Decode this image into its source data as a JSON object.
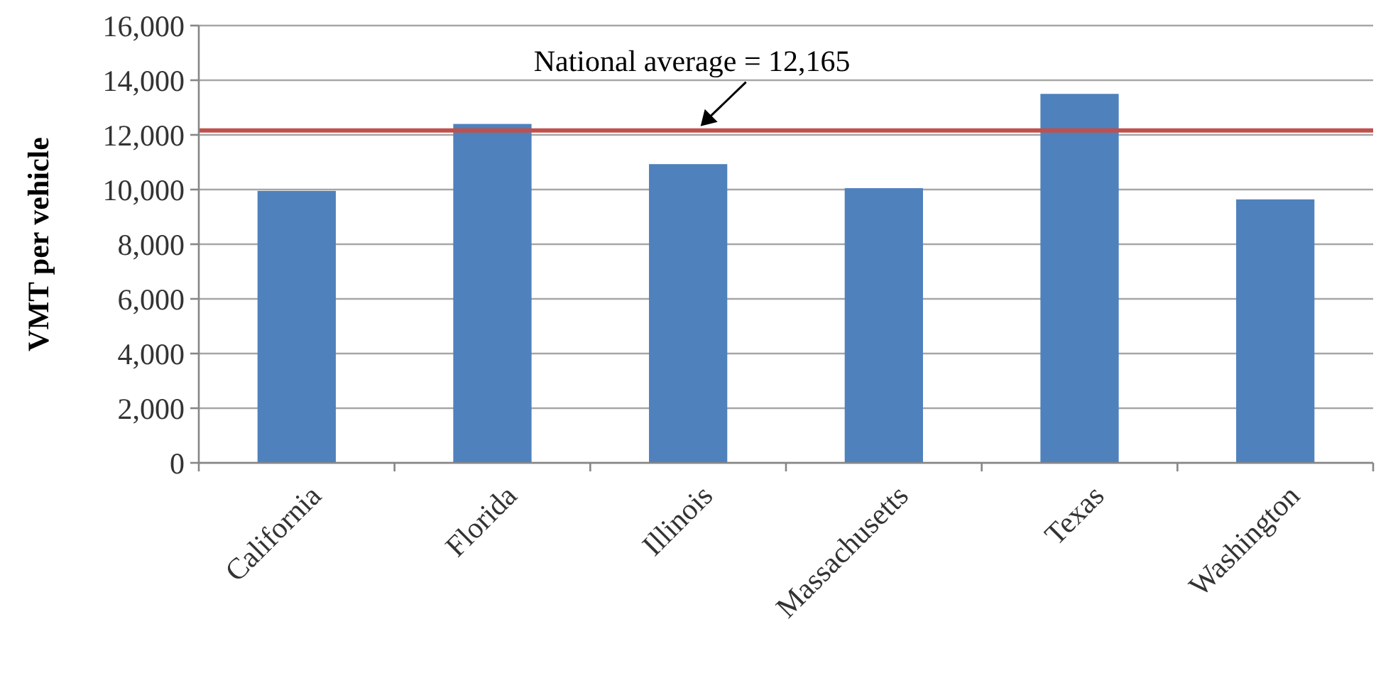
{
  "chart_data": {
    "type": "bar",
    "ylabel": "VMT per vehicle",
    "categories": [
      "California",
      "Florida",
      "Illinois",
      "Massachusetts",
      "Texas",
      "Washington"
    ],
    "values": [
      9950,
      12400,
      10930,
      10050,
      13500,
      9640
    ],
    "color": "#4f81bd",
    "ylim": [
      0,
      16000
    ],
    "yticks": [
      {
        "value": 0,
        "label": "0"
      },
      {
        "value": 2000,
        "label": "2,000"
      },
      {
        "value": 4000,
        "label": "4,000"
      },
      {
        "value": 6000,
        "label": "6,000"
      },
      {
        "value": 8000,
        "label": "8,000"
      },
      {
        "value": 10000,
        "label": "10,000"
      },
      {
        "value": 12000,
        "label": "12,000"
      },
      {
        "value": 14000,
        "label": "14,000"
      },
      {
        "value": 16000,
        "label": "16,000"
      }
    ],
    "grid": "y",
    "ref_lines": [
      {
        "axis": "y",
        "value": 12165,
        "label": "National average = 12,165",
        "color": "#c0504d"
      }
    ]
  }
}
